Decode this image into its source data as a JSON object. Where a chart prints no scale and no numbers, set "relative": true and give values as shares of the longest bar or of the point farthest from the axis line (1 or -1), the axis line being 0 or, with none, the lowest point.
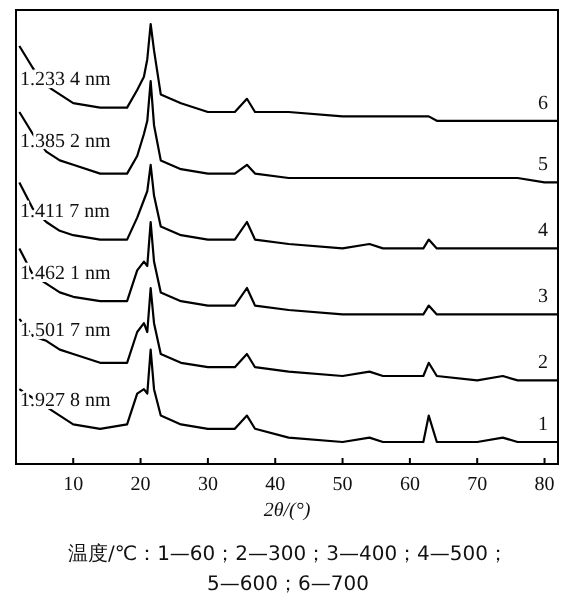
{
  "chart_data": {
    "type": "line",
    "relative": true,
    "xlabel": "2θ/(°)",
    "xlim": [
      1.5,
      82
    ],
    "xticks": [
      10,
      20,
      30,
      40,
      50,
      60,
      70,
      80
    ],
    "x": [
      2,
      4,
      6,
      8,
      10,
      14,
      18,
      19.5,
      20.5,
      21,
      21.5,
      22,
      23,
      26,
      30,
      34,
      35.8,
      37,
      42,
      50,
      54,
      56,
      62,
      62.8,
      64,
      70,
      73.8,
      76,
      80,
      82
    ],
    "series": [
      {
        "name": "1",
        "color": "#000000",
        "values": [
          0.17,
          0.15,
          0.13,
          0.11,
          0.09,
          0.08,
          0.09,
          0.16,
          0.17,
          0.16,
          0.26,
          0.17,
          0.11,
          0.09,
          0.08,
          0.08,
          0.11,
          0.08,
          0.06,
          0.05,
          0.06,
          0.05,
          0.05,
          0.11,
          0.05,
          0.05,
          0.06,
          0.05,
          0.05,
          0.05
        ]
      },
      {
        "name": "2",
        "color": "#000000",
        "values": [
          0.33,
          0.29,
          0.28,
          0.26,
          0.25,
          0.23,
          0.23,
          0.3,
          0.32,
          0.3,
          0.4,
          0.32,
          0.25,
          0.23,
          0.22,
          0.22,
          0.25,
          0.22,
          0.21,
          0.2,
          0.21,
          0.2,
          0.2,
          0.23,
          0.2,
          0.19,
          0.2,
          0.19,
          0.19,
          0.19
        ]
      },
      {
        "name": "3",
        "color": "#000000",
        "values": [
          0.49,
          0.43,
          0.41,
          0.39,
          0.38,
          0.37,
          0.37,
          0.44,
          0.46,
          0.45,
          0.55,
          0.46,
          0.39,
          0.37,
          0.36,
          0.36,
          0.4,
          0.36,
          0.35,
          0.34,
          0.34,
          0.34,
          0.34,
          0.36,
          0.34,
          0.34,
          0.34,
          0.34,
          0.34,
          0.34
        ]
      },
      {
        "name": "4",
        "color": "#000000",
        "values": [
          0.64,
          0.58,
          0.55,
          0.53,
          0.52,
          0.51,
          0.51,
          0.56,
          0.6,
          0.62,
          0.68,
          0.61,
          0.54,
          0.52,
          0.51,
          0.51,
          0.55,
          0.51,
          0.5,
          0.49,
          0.5,
          0.49,
          0.49,
          0.51,
          0.49,
          0.49,
          0.49,
          0.49,
          0.49,
          0.49
        ]
      },
      {
        "name": "5",
        "color": "#000000",
        "values": [
          0.8,
          0.75,
          0.71,
          0.69,
          0.68,
          0.66,
          0.66,
          0.7,
          0.75,
          0.78,
          0.87,
          0.77,
          0.69,
          0.67,
          0.66,
          0.66,
          0.68,
          0.66,
          0.65,
          0.65,
          0.65,
          0.65,
          0.65,
          0.65,
          0.65,
          0.65,
          0.65,
          0.65,
          0.64,
          0.64
        ]
      },
      {
        "name": "6",
        "color": "#000000",
        "values": [
          0.95,
          0.9,
          0.86,
          0.84,
          0.82,
          0.81,
          0.81,
          0.85,
          0.88,
          0.92,
          1.0,
          0.94,
          0.84,
          0.82,
          0.8,
          0.8,
          0.83,
          0.8,
          0.8,
          0.79,
          0.79,
          0.79,
          0.79,
          0.79,
          0.78,
          0.78,
          0.78,
          0.78,
          0.78,
          0.78
        ]
      }
    ],
    "annotations": [
      "1.927 8 nm",
      "1.501 7 nm",
      "1.462 1 nm",
      "1.411 7 nm",
      "1.385 2 nm",
      "1.233 4 nm",
      "温度/℃：1—60；2—300；3—400；4—500；\n5—600；6—700"
    ]
  }
}
